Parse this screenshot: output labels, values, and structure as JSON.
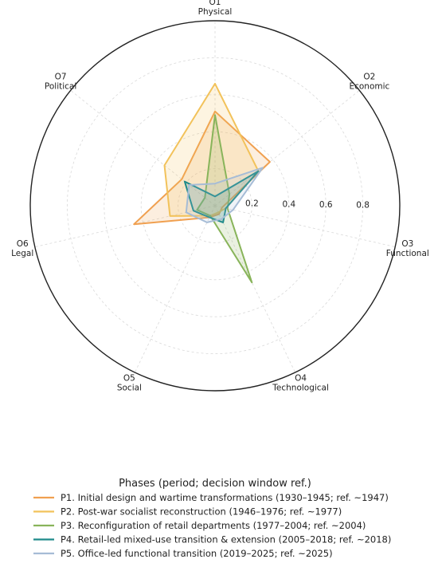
{
  "chart_data": {
    "type": "radar",
    "axes": [
      {
        "code": "O1",
        "name": "Physical"
      },
      {
        "code": "O2",
        "name": "Economic"
      },
      {
        "code": "O3",
        "name": "Functional"
      },
      {
        "code": "O4",
        "name": "Technological"
      },
      {
        "code": "O5",
        "name": "Social"
      },
      {
        "code": "O6",
        "name": "Legal"
      },
      {
        "code": "O7",
        "name": "Political"
      }
    ],
    "rlim": [
      0,
      1.0
    ],
    "r_ticks": [
      "0.2",
      "0.4",
      "0.6",
      "0.8"
    ],
    "grid": true,
    "legend": {
      "title": "Phases (period; decision window ref.)",
      "placement": "bottom"
    },
    "series": [
      {
        "name": "P1. Initial design and wartime transformations (1930–1945; ref. ~1947)",
        "color": "#f0a050",
        "values": [
          0.51,
          0.38,
          0.04,
          0.05,
          0.07,
          0.45,
          0.23
        ]
      },
      {
        "name": "P2. Post-war socialist reconstruction (1946–1976; ref. ~1977)",
        "color": "#f2c25a",
        "values": [
          0.66,
          0.3,
          0.06,
          0.04,
          0.06,
          0.25,
          0.35
        ]
      },
      {
        "name": "P3. Reconfiguration of retail departments (1977–2004; ref. ~2004)",
        "color": "#88b45a",
        "values": [
          0.49,
          0.1,
          0.07,
          0.46,
          0.06,
          0.1,
          0.07
        ]
      },
      {
        "name": "P4. Retail-led mixed-use transition & extension (2005–2018; ref. ~2018)",
        "color": "#1f8a8a",
        "values": [
          0.05,
          0.3,
          0.06,
          0.1,
          0.07,
          0.12,
          0.21
        ]
      },
      {
        "name": "P5. Office-led functional transition (2019–2025; ref. ~2025)",
        "color": "#a6bcd6",
        "values": [
          0.12,
          0.33,
          0.1,
          0.08,
          0.1,
          0.16,
          0.18
        ]
      }
    ]
  }
}
